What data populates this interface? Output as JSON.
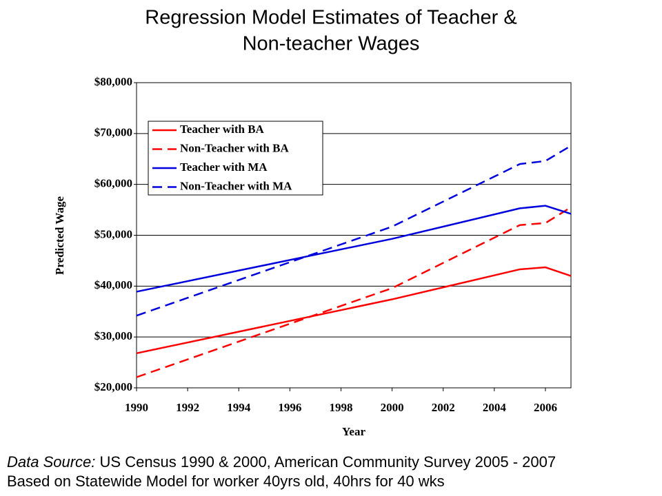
{
  "chart_data": {
    "type": "line",
    "title": [
      "Regression Model Estimates of Teacher &",
      "Non-teacher Wages"
    ],
    "x_label": "Year",
    "y_label": "Predicted Wage",
    "x": [
      1990,
      2000,
      2005,
      2006,
      2007
    ],
    "series": [
      {
        "name": "Teacher with BA",
        "color": "#ff0000",
        "line_style": "solid",
        "values": [
          26800,
          37400,
          43300,
          43700,
          42000
        ]
      },
      {
        "name": "Non-Teacher with BA",
        "color": "#ff0000",
        "line_style": "dashed",
        "values": [
          22100,
          39600,
          52000,
          52400,
          55500
        ]
      },
      {
        "name": "Teacher with MA",
        "color": "#0000dd",
        "line_style": "solid",
        "values": [
          38900,
          49300,
          55300,
          55800,
          54200
        ]
      },
      {
        "name": "Non-Teacher with MA",
        "color": "#0000dd",
        "line_style": "dashed",
        "values": [
          34200,
          51700,
          64000,
          64600,
          67600
        ]
      }
    ],
    "xlim": [
      1990,
      2007
    ],
    "xticks": [
      1990,
      1992,
      1994,
      1996,
      1998,
      2000,
      2002,
      2004,
      2006
    ],
    "ylim": [
      20000,
      80000
    ],
    "yticks": [
      {
        "value": 20000,
        "label": "$20,000"
      },
      {
        "value": 30000,
        "label": "$30,000"
      },
      {
        "value": 40000,
        "label": "$40,000"
      },
      {
        "value": 50000,
        "label": "$50,000"
      },
      {
        "value": 60000,
        "label": "$60,000"
      },
      {
        "value": 70000,
        "label": "$70,000"
      },
      {
        "value": 80000,
        "label": "$80,000"
      }
    ],
    "grid": true,
    "legend": "upper left",
    "notes": [
      {
        "label": "Data Source:",
        "text": " US Census 1990 & 2000, American Community Survey 2005 - 2007"
      },
      {
        "text": "Based on Statewide Model for worker 40yrs old, 40hrs for 40 wks"
      }
    ]
  }
}
